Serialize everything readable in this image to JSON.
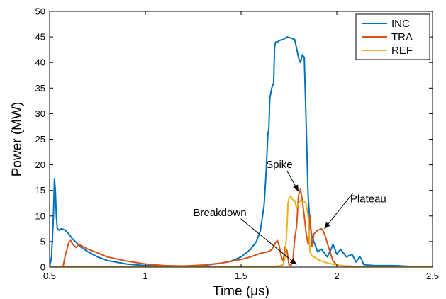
{
  "chart_data": {
    "type": "line",
    "title": "",
    "xlabel": "Time (μs)",
    "ylabel": "Power (MW)",
    "xlim": [
      0.5,
      2.5
    ],
    "ylim": [
      0,
      50
    ],
    "xticks": [
      "0.5",
      "1",
      "1.5",
      "2",
      "2.5"
    ],
    "yticks": [
      "0",
      "5",
      "10",
      "15",
      "20",
      "25",
      "30",
      "35",
      "40",
      "45",
      "50"
    ],
    "grid": false,
    "legend_position": "top-right",
    "series": [
      {
        "name": "INC",
        "color": "#0072BD",
        "x": [
          0.5,
          0.51,
          0.52,
          0.525,
          0.53,
          0.535,
          0.54,
          0.55,
          0.56,
          0.58,
          0.6,
          0.62,
          0.64,
          0.66,
          0.7,
          0.75,
          0.8,
          0.9,
          1.0,
          1.1,
          1.2,
          1.3,
          1.4,
          1.45,
          1.5,
          1.55,
          1.58,
          1.6,
          1.62,
          1.63,
          1.64,
          1.645,
          1.65,
          1.66,
          1.67,
          1.675,
          1.68,
          1.69,
          1.7,
          1.72,
          1.74,
          1.76,
          1.78,
          1.8,
          1.81,
          1.82,
          1.83,
          1.84,
          1.85,
          1.86,
          1.87,
          1.88,
          1.89,
          1.9,
          1.92,
          1.95,
          1.97,
          1.98,
          2.0,
          2.02,
          2.05,
          2.08,
          2.1,
          2.12,
          2.13,
          2.14,
          2.16,
          2.2,
          2.25,
          2.3,
          2.4,
          2.5
        ],
        "y": [
          0,
          2,
          10,
          17.3,
          15,
          10,
          7.6,
          7.2,
          7.5,
          7.3,
          6.5,
          5.5,
          4.8,
          4.0,
          3.0,
          2.0,
          1.3,
          0.6,
          0.3,
          0.15,
          0.1,
          0.3,
          0.8,
          1.2,
          2.0,
          3.5,
          5.0,
          7.0,
          12,
          18,
          26,
          27,
          33,
          35,
          36,
          43,
          44,
          44,
          44.3,
          44.5,
          45,
          44.8,
          44.5,
          41,
          40,
          41.5,
          41,
          28,
          14,
          8.5,
          6,
          5,
          4,
          3,
          3.5,
          2,
          3.5,
          4.5,
          2.5,
          3.5,
          2,
          2.5,
          1,
          2,
          1.5,
          0.5,
          0.4,
          0.3,
          0.3,
          0.3,
          0.1,
          0
        ]
      },
      {
        "name": "TRA",
        "color": "#D95319",
        "x": [
          0.5,
          0.57,
          0.58,
          0.6,
          0.61,
          0.62,
          0.64,
          0.65,
          0.66,
          0.7,
          0.75,
          0.8,
          0.9,
          1.0,
          1.1,
          1.2,
          1.3,
          1.4,
          1.5,
          1.55,
          1.6,
          1.64,
          1.66,
          1.68,
          1.69,
          1.7,
          1.71,
          1.72,
          1.73,
          1.74,
          1.75,
          1.76,
          1.77,
          1.78,
          1.79,
          1.8,
          1.81,
          1.82,
          1.83,
          1.84,
          1.85,
          1.86,
          1.87,
          1.88,
          1.9,
          1.92,
          1.93,
          1.94,
          1.96,
          1.98,
          2.0,
          2.05,
          2.1,
          2.2,
          2.5
        ],
        "y": [
          0,
          0,
          2,
          4.8,
          5.2,
          4.5,
          3.8,
          4.5,
          4.3,
          3.5,
          2.8,
          2.0,
          1.2,
          0.6,
          0.3,
          0.2,
          0.4,
          0.8,
          1.5,
          2.0,
          2.7,
          3.0,
          3.4,
          4.8,
          5.2,
          4.0,
          2.0,
          1.2,
          4.0,
          3.2,
          0.5,
          0.3,
          1.0,
          5.5,
          8.0,
          14.0,
          15.2,
          13.0,
          10.0,
          6.5,
          4.5,
          10.0,
          4.0,
          6.5,
          7.2,
          7.5,
          7.0,
          6.0,
          3.5,
          1.2,
          0.4,
          0.2,
          0.1,
          0,
          0
        ]
      },
      {
        "name": "REF",
        "color": "#EDB120",
        "x": [
          0.5,
          1.6,
          1.7,
          1.72,
          1.73,
          1.74,
          1.745,
          1.75,
          1.76,
          1.77,
          1.78,
          1.79,
          1.8,
          1.81,
          1.82,
          1.83,
          1.84,
          1.85,
          1.86,
          1.87,
          1.88,
          1.89,
          1.9,
          1.92,
          1.95,
          2.0,
          2.05,
          2.1,
          2.2,
          2.5
        ],
        "y": [
          0,
          0,
          0.2,
          0.5,
          2.0,
          8.0,
          12.5,
          13.5,
          13.8,
          13.2,
          13.0,
          11.5,
          12.5,
          13.0,
          12.8,
          12.8,
          12.5,
          10.0,
          3.0,
          2.2,
          2.0,
          1.8,
          1.5,
          1.2,
          0.8,
          0.4,
          0.2,
          0.1,
          0.05,
          0
        ]
      }
    ],
    "annotations": [
      {
        "text": "Spike",
        "x": 1.63,
        "y": 19.4,
        "arrow_to": [
          1.8,
          14.8
        ]
      },
      {
        "text": "Breakdown",
        "x": 1.25,
        "y": 10.0,
        "arrow_to": [
          1.79,
          0.5
        ]
      },
      {
        "text": "Plateau",
        "x": 2.07,
        "y": 12.7,
        "arrow_to": [
          1.935,
          7.5
        ]
      }
    ]
  }
}
